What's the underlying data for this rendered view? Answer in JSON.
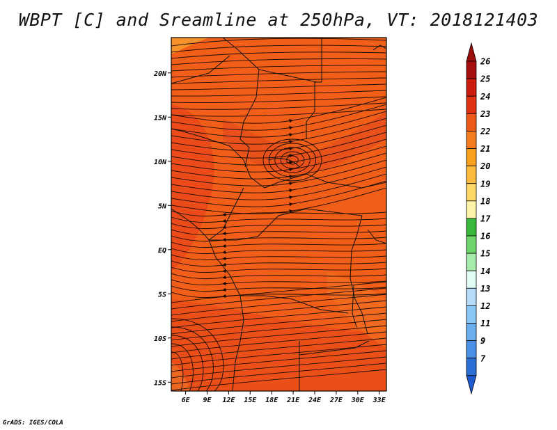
{
  "title": "WBPT [C] and Sreamline at 250hPa, VT: 2018121403",
  "credit": "GrADS: IGES/COLA",
  "map": {
    "lon_range": [
      4,
      34
    ],
    "lat_range": [
      -16,
      24
    ],
    "lat_ticks": [
      "20N",
      "15N",
      "10N",
      "5N",
      "EQ",
      "5S",
      "10S",
      "15S"
    ],
    "lat_values": [
      20,
      15,
      10,
      5,
      0,
      -5,
      -10,
      -15
    ],
    "lon_ticks": [
      "6E",
      "9E",
      "12E",
      "15E",
      "18E",
      "21E",
      "24E",
      "27E",
      "30E",
      "33E"
    ],
    "lon_values": [
      6,
      9,
      12,
      15,
      18,
      21,
      24,
      27,
      30,
      33
    ]
  },
  "colorbar": {
    "labels": [
      "26",
      "25",
      "24",
      "23",
      "22",
      "21",
      "20",
      "19",
      "18",
      "17",
      "16",
      "15",
      "14",
      "13",
      "12",
      "11",
      "9",
      "7"
    ],
    "colors": [
      "#a50f0f",
      "#cc1a0f",
      "#e03212",
      "#ee5a18",
      "#f47c1e",
      "#f8a01c",
      "#fabb3c",
      "#fcd866",
      "#fdf3a8",
      "#38b83a",
      "#6ed46b",
      "#a6ebaa",
      "#e1fbf5",
      "#b4dcfa",
      "#8ac6f4",
      "#6aaeee",
      "#4a90e6",
      "#2a6ed6"
    ],
    "arrow_top_color": "#9b0c0c",
    "arrow_bottom_color": "#1e5ad0"
  }
}
